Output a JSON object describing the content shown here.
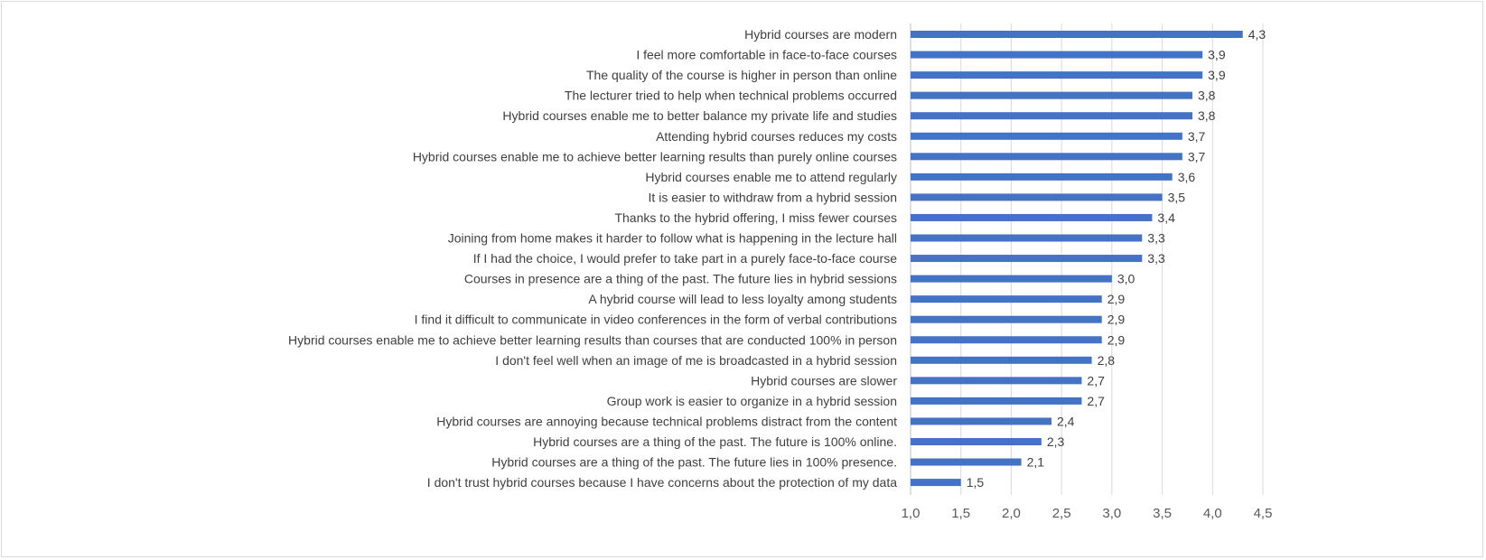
{
  "chart_data": {
    "type": "bar",
    "orientation": "horizontal",
    "categories": [
      "Hybrid courses are modern",
      "I feel more comfortable in face-to-face courses",
      "The quality of the course is higher in person than online",
      "The lecturer tried to help when technical problems occurred",
      "Hybrid courses enable me to better balance my private life and studies",
      "Attending hybrid courses reduces my costs",
      "Hybrid courses enable me to achieve better learning results than purely online courses",
      "Hybrid courses enable me to attend regularly",
      "It is easier to withdraw from a hybrid session",
      "Thanks to the hybrid offering, I miss fewer courses",
      "Joining from home makes it harder to follow what is happening in the lecture hall",
      "If I had the choice, I would prefer to take part in a purely face-to-face course",
      "Courses in presence are a thing of the past. The future lies in hybrid sessions",
      "A hybrid course will lead to less loyalty among students",
      "I find it difficult to communicate in video conferences in the form of verbal contributions",
      "Hybrid courses enable me to achieve better learning results than courses that are conducted 100% in person",
      "I don't feel well when an image of me is broadcasted in a hybrid session",
      "Hybrid courses are slower",
      "Group work is easier to organize in a hybrid session",
      "Hybrid courses are annoying because technical problems distract from the content",
      "Hybrid courses are a thing of the past. The future is 100% online.",
      "Hybrid courses are a thing of the past. The future lies in 100% presence.",
      "I don't trust hybrid courses because I have concerns about the protection of my data"
    ],
    "values": [
      4.3,
      3.9,
      3.9,
      3.8,
      3.8,
      3.7,
      3.7,
      3.6,
      3.5,
      3.4,
      3.3,
      3.3,
      3.0,
      2.9,
      2.9,
      2.9,
      2.8,
      2.7,
      2.7,
      2.4,
      2.3,
      2.1,
      1.5
    ],
    "value_labels": [
      "4,3",
      "3,9",
      "3,9",
      "3,8",
      "3,8",
      "3,7",
      "3,7",
      "3,6",
      "3,5",
      "3,4",
      "3,3",
      "3,3",
      "3,0",
      "2,9",
      "2,9",
      "2,9",
      "2,8",
      "2,7",
      "2,7",
      "2,4",
      "2,3",
      "2,1",
      "1,5"
    ],
    "xlim": [
      1.0,
      4.5
    ],
    "x_ticks": [
      1.0,
      1.5,
      2.0,
      2.5,
      3.0,
      3.5,
      4.0,
      4.5
    ],
    "x_tick_labels": [
      "1,0",
      "1,5",
      "2,0",
      "2,5",
      "3,0",
      "3,5",
      "4,0",
      "4,5"
    ],
    "title": "",
    "xlabel": "",
    "ylabel": "",
    "grid": "vertical",
    "legend": "none",
    "bar_color": "#4472c4"
  }
}
